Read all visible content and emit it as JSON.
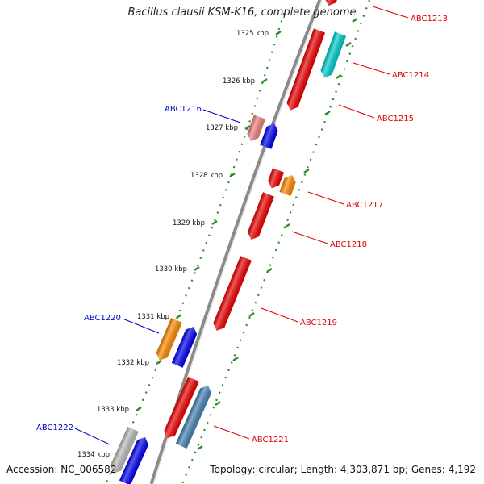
{
  "title": "Bacillus clausii KSM-K16, complete genome",
  "footer": {
    "accession": "Accession: NC_006582",
    "info": "Topology: circular; Length: 4,303,871 bp; Genes: 4,192"
  },
  "scale": {
    "unit": "kbp",
    "ticks": [
      "1325 kbp",
      "1326 kbp",
      "1327 kbp",
      "1328 kbp",
      "1329 kbp",
      "1330 kbp",
      "1331 kbp",
      "1332 kbp",
      "1333 kbp",
      "1334 kbp"
    ]
  },
  "colors": {
    "backbone": "#8a8a8a",
    "scale_line": "#2e8b2e",
    "label_red": "#dd0000",
    "label_blue": "#0000cc",
    "red": "#ee0000",
    "pink": "#f08080",
    "blue": "#0000ee",
    "cyan": "#00cccc",
    "orange": "#ff8800",
    "steelblue": "#4682b4",
    "gray": "#bbbbbb"
  },
  "genes": [
    {
      "label": "ABC1213",
      "color": "red",
      "strand": "-",
      "labeled": true
    },
    {
      "label": "ABC1214",
      "color": "cyan",
      "strand": "+",
      "labeled": true
    },
    {
      "label": "ABC1215",
      "color": "red",
      "strand": "-",
      "labeled": true
    },
    {
      "label": "ABC1216",
      "color": "pink",
      "strand": "-",
      "labeled": true
    },
    {
      "label": "",
      "color": "blue",
      "strand": "+",
      "labeled": false
    },
    {
      "label": "ABC1217",
      "color": "orange",
      "strand": "+",
      "labeled": true
    },
    {
      "label": "",
      "color": "red",
      "strand": "-",
      "labeled": false
    },
    {
      "label": "ABC1218",
      "color": "red",
      "strand": "-",
      "labeled": true
    },
    {
      "label": "ABC1219",
      "color": "red",
      "strand": "-",
      "labeled": true
    },
    {
      "label": "ABC1220",
      "color": "orange",
      "strand": "-",
      "labeled": true
    },
    {
      "label": "",
      "color": "blue",
      "strand": "+",
      "labeled": false
    },
    {
      "label": "ABC1221",
      "color": "steelblue",
      "strand": "+",
      "labeled": true
    },
    {
      "label": "",
      "color": "red",
      "strand": "-",
      "labeled": false
    },
    {
      "label": "ABC1222",
      "color": "gray",
      "strand": "-",
      "labeled": true
    },
    {
      "label": "",
      "color": "blue",
      "strand": "+",
      "labeled": false
    }
  ]
}
